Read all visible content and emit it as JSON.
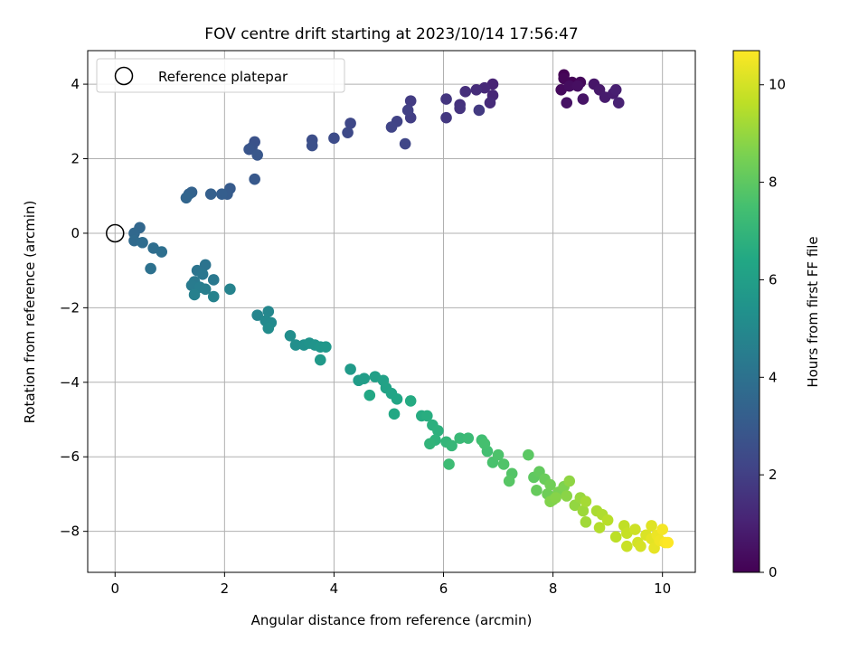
{
  "chart_data": {
    "type": "scatter",
    "title": "FOV centre drift starting at 2023/10/14 17:56:47",
    "xlabel": "Angular distance from reference (arcmin)",
    "ylabel": "Rotation from reference (arcmin)",
    "xlim": [
      -0.5,
      10.6
    ],
    "ylim": [
      -9.1,
      4.9
    ],
    "xticks": [
      0,
      2,
      4,
      6,
      8,
      10
    ],
    "yticks": [
      -8,
      -6,
      -4,
      -2,
      0,
      2,
      4
    ],
    "grid": true,
    "legend": {
      "placement": "upper-left",
      "entries": [
        "Reference platepar"
      ]
    },
    "reference_point": {
      "x": 0,
      "y": 0
    },
    "colorbar": {
      "label": "Hours from first FF file",
      "range": [
        0,
        10.7
      ],
      "ticks": [
        0,
        2,
        4,
        6,
        8,
        10
      ],
      "colormap": "viridis"
    },
    "series": [
      {
        "points": [
          [
            8.2,
            4.25
          ],
          [
            8.35,
            4.05
          ],
          [
            8.2,
            4.15
          ],
          [
            8.5,
            4.05
          ],
          [
            8.15,
            3.85
          ],
          [
            8.3,
            3.95
          ],
          [
            8.45,
            3.95
          ],
          [
            8.25,
            3.5
          ],
          [
            8.55,
            3.6
          ],
          [
            8.75,
            4.0
          ],
          [
            8.85,
            3.85
          ],
          [
            8.95,
            3.65
          ],
          [
            9.1,
            3.75
          ],
          [
            9.15,
            3.85
          ],
          [
            9.2,
            3.5
          ],
          [
            6.9,
            4.0
          ],
          [
            6.9,
            3.7
          ],
          [
            6.75,
            3.9
          ],
          [
            6.85,
            3.5
          ],
          [
            6.6,
            3.85
          ],
          [
            6.4,
            3.8
          ],
          [
            6.3,
            3.45
          ],
          [
            6.3,
            3.35
          ],
          [
            6.05,
            3.6
          ],
          [
            6.05,
            3.1
          ],
          [
            6.65,
            3.3
          ],
          [
            5.4,
            3.55
          ],
          [
            5.4,
            3.1
          ],
          [
            5.35,
            3.3
          ],
          [
            5.15,
            3.0
          ],
          [
            5.05,
            2.85
          ],
          [
            5.3,
            2.4
          ],
          [
            4.3,
            2.95
          ],
          [
            4.25,
            2.7
          ],
          [
            4.0,
            2.55
          ],
          [
            3.6,
            2.5
          ],
          [
            3.6,
            2.35
          ],
          [
            2.55,
            2.45
          ],
          [
            2.5,
            2.3
          ],
          [
            2.45,
            2.25
          ],
          [
            2.6,
            2.1
          ],
          [
            2.55,
            1.45
          ],
          [
            2.1,
            1.2
          ],
          [
            2.05,
            1.05
          ],
          [
            1.95,
            1.05
          ],
          [
            1.75,
            1.05
          ],
          [
            1.4,
            1.1
          ],
          [
            1.35,
            1.05
          ],
          [
            1.3,
            0.95
          ],
          [
            0.45,
            0.15
          ],
          [
            0.35,
            0.0
          ],
          [
            0.35,
            -0.2
          ],
          [
            0.5,
            -0.25
          ],
          [
            0.7,
            -0.4
          ],
          [
            0.85,
            -0.5
          ],
          [
            0.65,
            -0.95
          ],
          [
            1.65,
            -0.85
          ],
          [
            1.5,
            -1.0
          ],
          [
            1.6,
            -1.1
          ],
          [
            1.8,
            -1.25
          ],
          [
            1.45,
            -1.3
          ],
          [
            1.4,
            -1.4
          ],
          [
            1.55,
            -1.45
          ],
          [
            1.65,
            -1.5
          ],
          [
            1.45,
            -1.65
          ],
          [
            1.8,
            -1.7
          ],
          [
            2.1,
            -1.5
          ],
          [
            2.6,
            -2.2
          ],
          [
            2.8,
            -2.1
          ],
          [
            2.75,
            -2.35
          ],
          [
            2.85,
            -2.4
          ],
          [
            2.8,
            -2.55
          ],
          [
            3.2,
            -2.75
          ],
          [
            3.3,
            -3.0
          ],
          [
            3.45,
            -3.0
          ],
          [
            3.55,
            -2.95
          ],
          [
            3.65,
            -3.0
          ],
          [
            3.75,
            -3.05
          ],
          [
            3.85,
            -3.05
          ],
          [
            3.75,
            -3.4
          ],
          [
            4.3,
            -3.65
          ],
          [
            4.45,
            -3.95
          ],
          [
            4.55,
            -3.9
          ],
          [
            4.75,
            -3.85
          ],
          [
            4.9,
            -3.95
          ],
          [
            4.95,
            -4.15
          ],
          [
            5.05,
            -4.3
          ],
          [
            5.15,
            -4.45
          ],
          [
            4.65,
            -4.35
          ],
          [
            5.1,
            -4.85
          ],
          [
            5.4,
            -4.5
          ],
          [
            5.6,
            -4.9
          ],
          [
            5.7,
            -4.9
          ],
          [
            5.8,
            -5.15
          ],
          [
            5.9,
            -5.3
          ],
          [
            5.85,
            -5.55
          ],
          [
            5.75,
            -5.65
          ],
          [
            6.05,
            -5.6
          ],
          [
            6.15,
            -5.7
          ],
          [
            6.3,
            -5.5
          ],
          [
            6.45,
            -5.5
          ],
          [
            6.1,
            -6.2
          ],
          [
            6.7,
            -5.55
          ],
          [
            6.8,
            -5.85
          ],
          [
            6.75,
            -5.65
          ],
          [
            6.9,
            -6.15
          ],
          [
            7.0,
            -5.95
          ],
          [
            7.1,
            -6.2
          ],
          [
            7.25,
            -6.45
          ],
          [
            7.2,
            -6.65
          ],
          [
            7.55,
            -5.95
          ],
          [
            7.65,
            -6.55
          ],
          [
            7.75,
            -6.4
          ],
          [
            7.7,
            -6.9
          ],
          [
            7.85,
            -6.6
          ],
          [
            7.9,
            -7.0
          ],
          [
            7.95,
            -6.75
          ],
          [
            8.0,
            -7.15
          ],
          [
            8.1,
            -6.95
          ],
          [
            8.2,
            -6.8
          ],
          [
            7.95,
            -7.2
          ],
          [
            8.05,
            -7.1
          ],
          [
            8.25,
            -7.05
          ],
          [
            8.3,
            -6.65
          ],
          [
            8.4,
            -7.3
          ],
          [
            8.5,
            -7.1
          ],
          [
            8.55,
            -7.45
          ],
          [
            8.6,
            -7.75
          ],
          [
            8.6,
            -7.2
          ],
          [
            8.8,
            -7.45
          ],
          [
            8.9,
            -7.55
          ],
          [
            8.85,
            -7.9
          ],
          [
            9.0,
            -7.7
          ],
          [
            9.15,
            -8.15
          ],
          [
            9.3,
            -7.85
          ],
          [
            9.35,
            -8.05
          ],
          [
            9.35,
            -8.4
          ],
          [
            9.5,
            -7.95
          ],
          [
            9.55,
            -8.3
          ],
          [
            9.6,
            -8.4
          ],
          [
            9.7,
            -8.1
          ],
          [
            9.8,
            -7.85
          ],
          [
            9.8,
            -8.2
          ],
          [
            9.85,
            -8.45
          ],
          [
            9.9,
            -8.1
          ],
          [
            9.95,
            -8.25
          ],
          [
            10.0,
            -7.95
          ],
          [
            10.05,
            -8.3
          ],
          [
            10.1,
            -8.3
          ]
        ]
      }
    ]
  }
}
